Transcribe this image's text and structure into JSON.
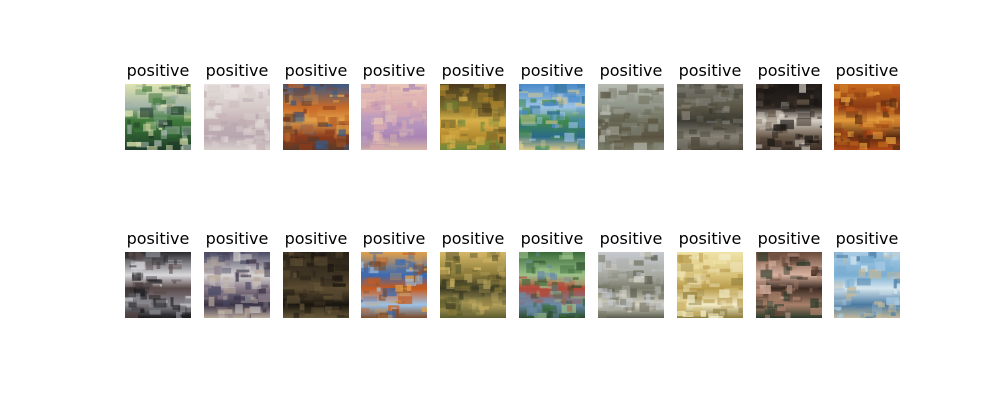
{
  "figure": {
    "rows": [
      {
        "samples": [
          {
            "label": "positive",
            "image": {
              "depicts": "painted landscape, bright sky, green field",
              "palette": [
                "#dfe4b0",
                "#9fb2a8",
                "#3f7a3a",
                "#2c5a30",
                "#1f3a2a"
              ]
            }
          },
          {
            "label": "positive",
            "image": {
              "depicts": "pale washed-out texture, faint sketch",
              "palette": [
                "#e8e2e0",
                "#d6cbc9",
                "#c7b4b8",
                "#b8a7b0",
                "#d9d1cd"
              ]
            }
          },
          {
            "label": "positive",
            "image": {
              "depicts": "warm orange and blue abstract landscape",
              "palette": [
                "#3a5a86",
                "#c76a28",
                "#e2a04a",
                "#8a3a1c",
                "#5a3a2a"
              ]
            }
          },
          {
            "label": "positive",
            "image": {
              "depicts": "pastel pink and violet sky",
              "palette": [
                "#e9c7b6",
                "#d9a9b0",
                "#b99ac0",
                "#a985b4",
                "#d7b6a7"
              ]
            }
          },
          {
            "label": "positive",
            "image": {
              "depicts": "golden landscape with dark trees",
              "palette": [
                "#4a3a1c",
                "#7a6a2c",
                "#d9b14a",
                "#b2882c",
                "#6a8a3c"
              ]
            }
          },
          {
            "label": "positive",
            "image": {
              "depicts": "blue sky over green meadow and water",
              "palette": [
                "#4a8ac8",
                "#9cc2e6",
                "#3f8a4a",
                "#2a6a8a",
                "#d9c98a"
              ]
            }
          },
          {
            "label": "positive",
            "image": {
              "depicts": "misty grey-green countryside",
              "palette": [
                "#b8bcb2",
                "#8e9488",
                "#6a6c5a",
                "#5a5240",
                "#7a7a66"
              ]
            }
          },
          {
            "label": "positive",
            "image": {
              "depicts": "muted figure in brown landscape",
              "palette": [
                "#7a7a72",
                "#5a5646",
                "#3a3a32",
                "#8a8478",
                "#4a4438"
              ]
            }
          },
          {
            "label": "positive",
            "image": {
              "depicts": "dark silhouette against light",
              "palette": [
                "#1a1614",
                "#2a2420",
                "#d6d0c6",
                "#6a5a4a",
                "#3a2e26"
              ]
            }
          },
          {
            "label": "positive",
            "image": {
              "depicts": "autumn orange foliage texture",
              "palette": [
                "#c66a1c",
                "#8a3a14",
                "#e29a3a",
                "#5a2a10",
                "#b24a18"
              ]
            }
          }
        ]
      },
      {
        "samples": [
          {
            "label": "positive",
            "image": {
              "depicts": "dark and white expressive brushwork",
              "palette": [
                "#2a2a2e",
                "#d9d9dc",
                "#5a4a4a",
                "#8a8a92",
                "#1a1a1c"
              ]
            }
          },
          {
            "label": "positive",
            "image": {
              "depicts": "village houses under grey sky",
              "palette": [
                "#4a4a66",
                "#d8d4d2",
                "#8a7c8a",
                "#3a3448",
                "#b8a89a"
              ]
            }
          },
          {
            "label": "positive",
            "image": {
              "depicts": "dark forest interior",
              "palette": [
                "#2a2218",
                "#3e3424",
                "#5a4a30",
                "#1a1610",
                "#6a5a3a"
              ]
            }
          },
          {
            "label": "positive",
            "image": {
              "depicts": "orange trees reflected in blue water",
              "palette": [
                "#e2a04a",
                "#3a6ab2",
                "#c85a1c",
                "#9cc2e6",
                "#7a4a2a"
              ]
            }
          },
          {
            "label": "positive",
            "image": {
              "depicts": "golden cliffs and dark foliage",
              "palette": [
                "#d6b866",
                "#8a7a3a",
                "#3a3a22",
                "#b2a05a",
                "#5a5a2e"
              ]
            }
          },
          {
            "label": "positive",
            "image": {
              "depicts": "dense green and red garden",
              "palette": [
                "#3a6a3a",
                "#9cc28a",
                "#b24a3a",
                "#6a8aa8",
                "#2a4a2a"
              ]
            }
          },
          {
            "label": "positive",
            "image": {
              "depicts": "wide pale plain under cloudy sky",
              "palette": [
                "#c6cad0",
                "#a8aaa2",
                "#7a7a6a",
                "#d9d6c8",
                "#5a5c4e"
              ]
            }
          },
          {
            "label": "positive",
            "image": {
              "depicts": "sunlit yellow field with horizon",
              "palette": [
                "#efe3a8",
                "#d9c27a",
                "#b89a4a",
                "#f3ecc8",
                "#8a7a3a"
              ]
            }
          },
          {
            "label": "positive",
            "image": {
              "depicts": "ruins with pink and brown tones",
              "palette": [
                "#6a4a3a",
                "#d9b2a0",
                "#3a2a22",
                "#a8806a",
                "#2a3a2a"
              ]
            }
          },
          {
            "label": "positive",
            "image": {
              "depicts": "light blue sea with distant boats",
              "palette": [
                "#a8cce6",
                "#7aaed2",
                "#d6e6ee",
                "#4a7aa2",
                "#c2b89a"
              ]
            }
          }
        ]
      }
    ]
  }
}
